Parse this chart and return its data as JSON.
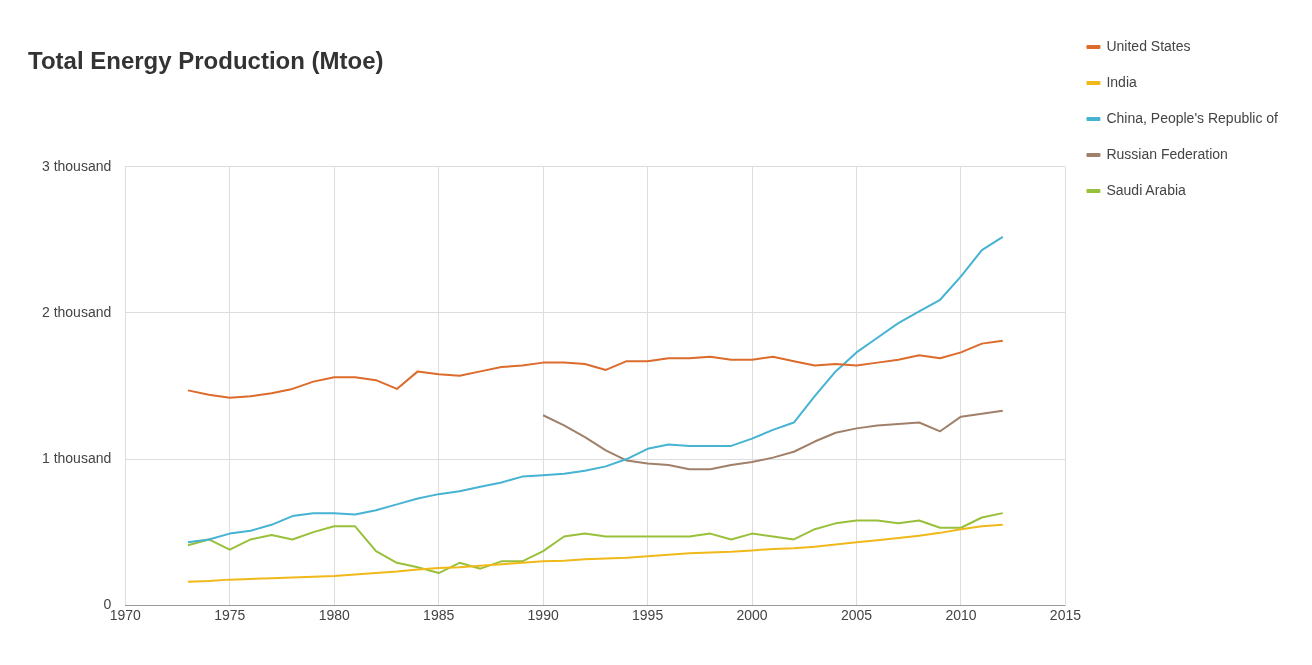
{
  "chart_data": {
    "type": "line",
    "title": "Total Energy Production (Mtoe)",
    "x": [
      1973,
      1974,
      1975,
      1976,
      1977,
      1978,
      1979,
      1980,
      1981,
      1982,
      1983,
      1984,
      1985,
      1986,
      1987,
      1988,
      1989,
      1990,
      1991,
      1992,
      1993,
      1994,
      1995,
      1996,
      1997,
      1998,
      1999,
      2000,
      2001,
      2002,
      2003,
      2004,
      2005,
      2006,
      2007,
      2008,
      2009,
      2010,
      2011,
      2012
    ],
    "series": [
      {
        "name": "United States",
        "color": "#dc6b2c",
        "values": [
          1470,
          1440,
          1420,
          1430,
          1450,
          1480,
          1530,
          1560,
          1560,
          1540,
          1480,
          1600,
          1580,
          1570,
          1600,
          1630,
          1640,
          1660,
          1660,
          1650,
          1610,
          1670,
          1670,
          1690,
          1690,
          1700,
          1680,
          1680,
          1700,
          1670,
          1640,
          1650,
          1640,
          1660,
          1680,
          1710,
          1690,
          1730,
          1790,
          1810
        ]
      },
      {
        "name": "India",
        "color": "#f1b81a",
        "values": [
          160,
          165,
          175,
          180,
          185,
          190,
          195,
          200,
          210,
          220,
          230,
          245,
          255,
          260,
          270,
          280,
          290,
          300,
          305,
          315,
          320,
          325,
          335,
          345,
          355,
          360,
          365,
          375,
          385,
          390,
          400,
          415,
          430,
          445,
          460,
          475,
          495,
          520,
          540,
          550
        ]
      },
      {
        "name": "China, People's Republic of",
        "color": "#46b3d3",
        "values": [
          430,
          450,
          490,
          510,
          550,
          610,
          630,
          630,
          620,
          650,
          690,
          730,
          760,
          780,
          810,
          840,
          880,
          890,
          900,
          920,
          950,
          1000,
          1070,
          1100,
          1090,
          1090,
          1090,
          1140,
          1200,
          1250,
          1430,
          1600,
          1730,
          1830,
          1930,
          2010,
          2090,
          2250,
          2430,
          2520
        ]
      },
      {
        "name": "Russian Federation",
        "color": "#a0806a",
        "values": [
          null,
          null,
          null,
          null,
          null,
          null,
          null,
          null,
          null,
          null,
          null,
          null,
          null,
          null,
          null,
          null,
          null,
          1300,
          1230,
          1150,
          1060,
          990,
          970,
          960,
          930,
          930,
          960,
          980,
          1010,
          1050,
          1120,
          1180,
          1210,
          1230,
          1240,
          1250,
          1190,
          1290,
          1310,
          1330
        ]
      },
      {
        "name": "Saudi Arabia",
        "color": "#99c03a",
        "values": [
          410,
          450,
          380,
          450,
          480,
          450,
          500,
          540,
          540,
          370,
          290,
          260,
          220,
          290,
          250,
          300,
          300,
          370,
          470,
          490,
          470,
          470,
          470,
          470,
          470,
          490,
          450,
          490,
          470,
          450,
          520,
          560,
          580,
          580,
          560,
          580,
          530,
          530,
          600,
          630
        ]
      }
    ],
    "xlim": [
      1970,
      2015
    ],
    "xticks": [
      1970,
      1975,
      1980,
      1985,
      1990,
      1995,
      2000,
      2005,
      2010,
      2015
    ],
    "ylim": [
      0,
      3000
    ],
    "yticks": [
      0,
      {
        "value": 1000,
        "label": "1 thousand"
      },
      {
        "value": 2000,
        "label": "2 thousand"
      },
      {
        "value": 3000,
        "label": "3 thousand"
      }
    ],
    "grid": true,
    "legend": "right",
    "marker": "none",
    "line_style": "solid"
  }
}
